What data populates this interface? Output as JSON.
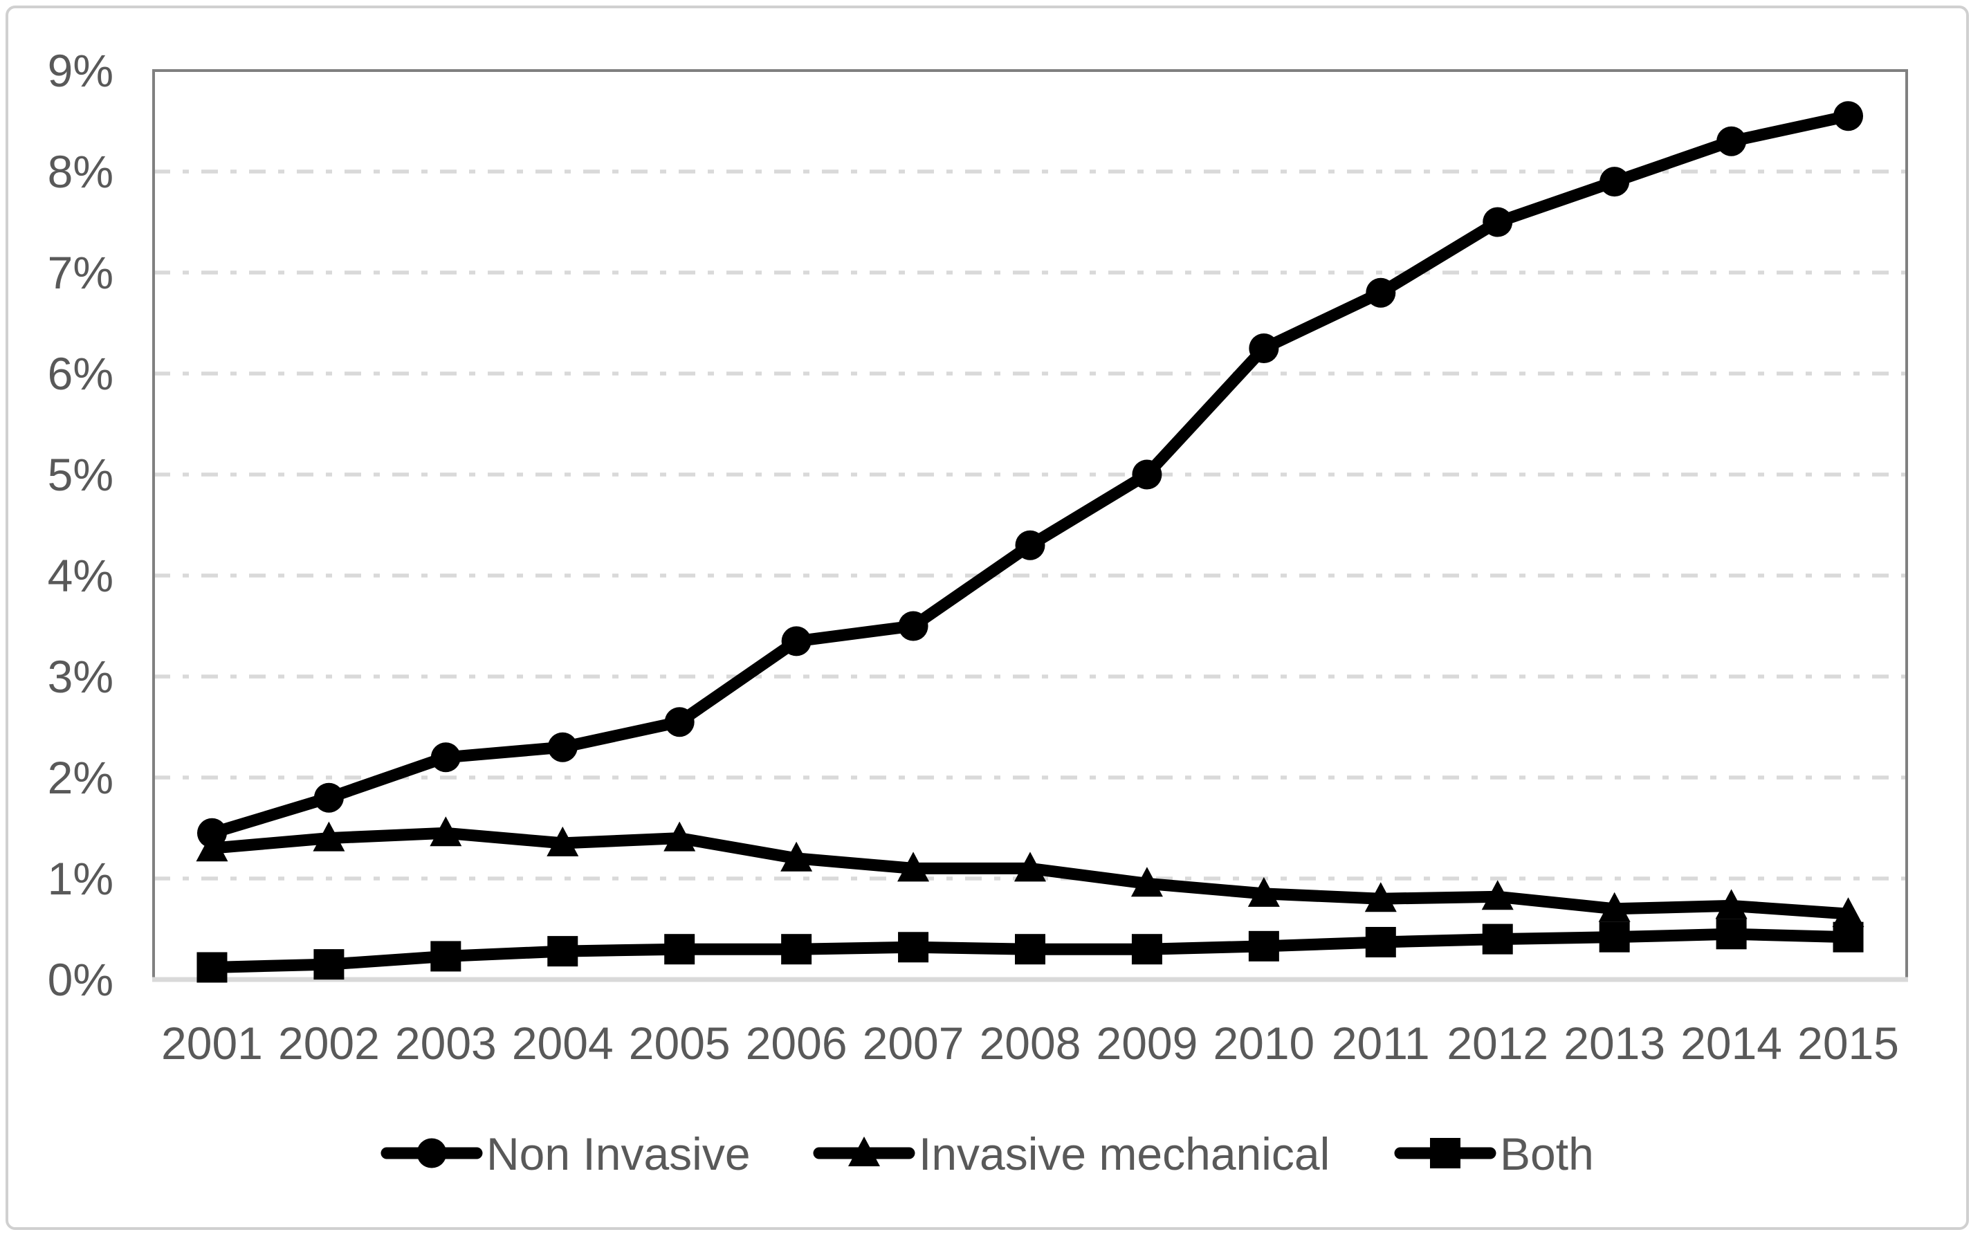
{
  "chart_data": {
    "type": "line",
    "categories": [
      "2001",
      "2002",
      "2003",
      "2004",
      "2005",
      "2006",
      "2007",
      "2008",
      "2009",
      "2010",
      "2011",
      "2012",
      "2013",
      "2014",
      "2015"
    ],
    "series": [
      {
        "name": "Non Invasive",
        "marker": "circle-marker-icon",
        "values": [
          1.45,
          1.8,
          2.2,
          2.3,
          2.55,
          3.35,
          3.5,
          4.3,
          5.0,
          6.25,
          6.8,
          7.5,
          7.9,
          8.3,
          8.55
        ]
      },
      {
        "name": "Invasive mechanical",
        "marker": "triangle-marker-icon",
        "values": [
          1.3,
          1.4,
          1.45,
          1.35,
          1.4,
          1.2,
          1.1,
          1.1,
          0.95,
          0.85,
          0.8,
          0.82,
          0.7,
          0.73,
          0.65
        ]
      },
      {
        "name": "Both",
        "marker": "square-marker-icon",
        "values": [
          0.12,
          0.15,
          0.23,
          0.28,
          0.3,
          0.3,
          0.32,
          0.3,
          0.3,
          0.33,
          0.37,
          0.4,
          0.42,
          0.45,
          0.42
        ]
      }
    ],
    "title": "",
    "xlabel": "",
    "ylabel": "",
    "ylim": [
      0,
      9
    ],
    "ytick_labels": [
      "0%",
      "1%",
      "2%",
      "3%",
      "4%",
      "5%",
      "6%",
      "7%",
      "8%",
      "9%"
    ],
    "grid": "horizontal dash-dot gridlines at each 1%",
    "legend_position": "bottom-center",
    "series_color": "#000000",
    "colors": {
      "axis_text": "#595959",
      "gridline": "#d9d9d9",
      "plot_border": "#808080",
      "x_axis_line": "#d9d9d9",
      "outer_border": "#d0d0d0",
      "background": "#ffffff"
    }
  }
}
